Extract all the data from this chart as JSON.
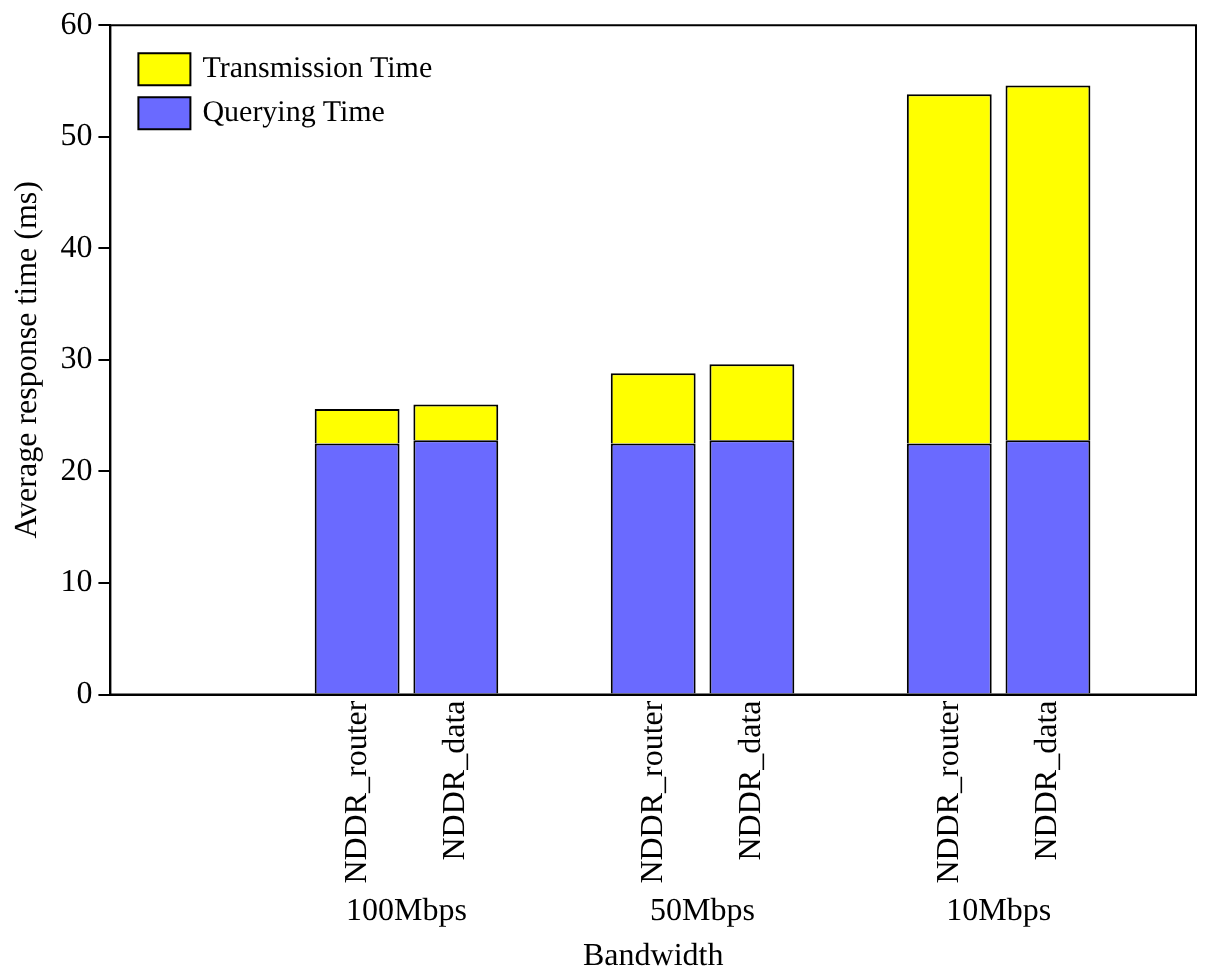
{
  "chart_data": {
    "type": "bar",
    "xlabel": "Bandwidth",
    "ylabel": "Average response time (ms)",
    "categories": [
      null,
      null,
      "NDDR_router",
      "NDDR_data",
      null,
      "NDDR_router",
      "NDDR_data",
      null,
      "NDDR_router",
      "NDDR_data",
      null
    ],
    "series": [
      {
        "name": "Querying Time",
        "color": "#6a6aff",
        "values": [
          null,
          null,
          22.5,
          22.8,
          null,
          22.5,
          22.8,
          null,
          22.5,
          22.8,
          null
        ]
      },
      {
        "name": "Transmission Time",
        "color": "#ffff00",
        "values": [
          null,
          null,
          3.1,
          3.2,
          null,
          6.3,
          6.8,
          null,
          31.3,
          31.8,
          null
        ]
      }
    ],
    "stacked": true,
    "ylim": [
      0,
      60
    ],
    "yticks": [
      0,
      10,
      20,
      30,
      40,
      50,
      60
    ],
    "grid": false,
    "legend": "top left",
    "annotations": [
      "100Mbps",
      "50Mbps",
      "10Mbps"
    ]
  }
}
